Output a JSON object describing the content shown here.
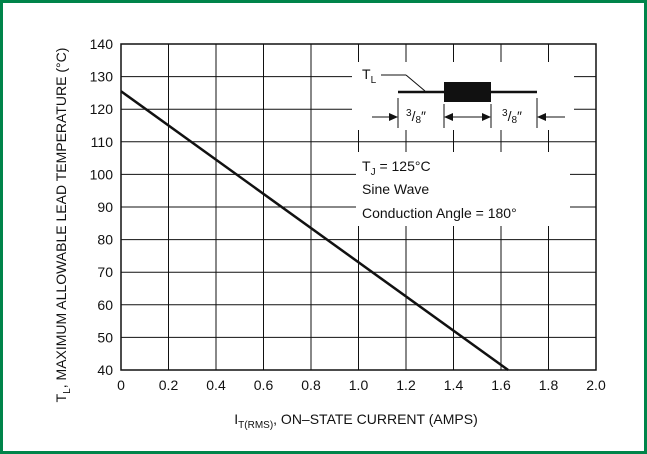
{
  "chart_data": {
    "type": "line",
    "title": "",
    "xlabel": {
      "symbol": "I",
      "subscript": "T(RMS)",
      "text": ", ON–STATE CURRENT (AMPS)"
    },
    "ylabel": {
      "symbol": "T",
      "subscript": "L",
      "text": ", MAXIMUM ALLOWABLE LEAD TEMPERATURE (°C)"
    },
    "xlim": [
      0,
      2.0
    ],
    "ylim": [
      40,
      140
    ],
    "x_ticks": [
      "0",
      "0.2",
      "0.4",
      "0.6",
      "0.8",
      "1.0",
      "1.2",
      "1.4",
      "1.6",
      "1.8",
      "2.0"
    ],
    "y_ticks": [
      "40",
      "50",
      "60",
      "70",
      "80",
      "90",
      "100",
      "110",
      "120",
      "130",
      "140"
    ],
    "grid": true,
    "series": [
      {
        "x": [
          0,
          1.63
        ],
        "y": [
          125.5,
          40
        ]
      }
    ],
    "annotations": {
      "lead_label": {
        "symbol": "T",
        "subscript": "L"
      },
      "dim_left": {
        "num": "3",
        "den": "8",
        "unit": "″"
      },
      "dim_right": {
        "num": "3",
        "den": "8",
        "unit": "″"
      },
      "tj": {
        "symbol": "T",
        "subscript": "J",
        "text": " = 125°C"
      },
      "wave": "Sine Wave",
      "conduction": "Conduction Angle = 180°"
    },
    "colors": {
      "border": "#00844a",
      "line": "#111111",
      "grid": "#111111"
    }
  }
}
